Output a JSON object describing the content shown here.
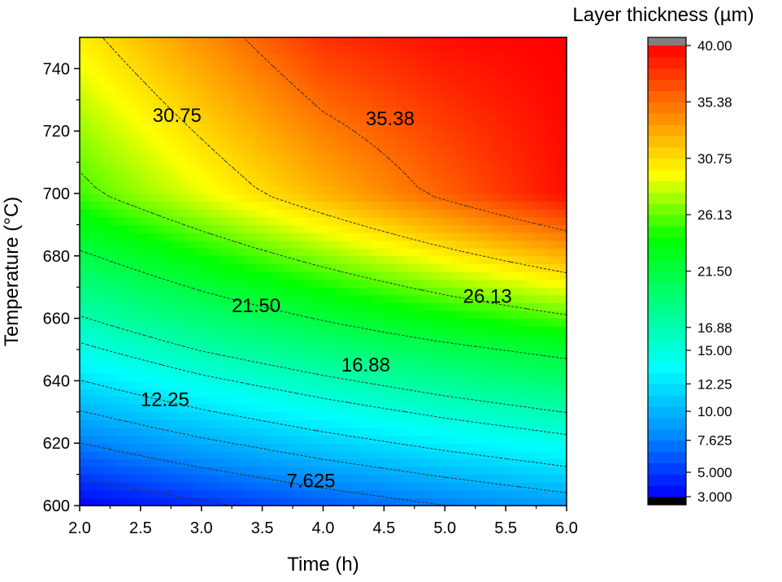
{
  "chart_data": {
    "type": "heatmap",
    "subtype": "filled-contour",
    "xlabel": "Time (h)",
    "ylabel": "Temperature (°C)",
    "xlim": [
      2.0,
      6.0
    ],
    "ylim": [
      600,
      750
    ],
    "x_ticks": [
      "2.0",
      "2.5",
      "3.0",
      "3.5",
      "4.0",
      "4.5",
      "5.0",
      "5.5",
      "6.0"
    ],
    "y_ticks": [
      "600",
      "620",
      "640",
      "660",
      "680",
      "700",
      "720",
      "740"
    ],
    "grid": false,
    "z_field": {
      "x": [
        2.0,
        3.0,
        4.0,
        5.0,
        6.0
      ],
      "y": [
        600,
        650,
        700,
        750
      ],
      "z": [
        [
          3.0,
          4.6,
          6.2,
          7.6,
          8.9
        ],
        [
          14.5,
          17.0,
          19.0,
          20.8,
          22.3
        ],
        [
          25.5,
          29.0,
          32.5,
          36.0,
          39.5
        ],
        [
          30.0,
          34.0,
          38.0,
          39.5,
          40.0
        ]
      ]
    },
    "contour_levels": [
      3.0,
      5.0,
      7.625,
      10.0,
      12.25,
      15.0,
      16.88,
      21.5,
      26.13,
      30.75,
      35.38,
      40.0
    ],
    "contour_labels": [
      {
        "text": "30.75",
        "x": 2.8,
        "y": 725
      },
      {
        "text": "35.38",
        "x": 4.55,
        "y": 724
      },
      {
        "text": "26.13",
        "x": 5.35,
        "y": 667
      },
      {
        "text": "21.50",
        "x": 3.45,
        "y": 664
      },
      {
        "text": "16.88",
        "x": 4.35,
        "y": 645
      },
      {
        "text": "12.25",
        "x": 2.7,
        "y": 634
      },
      {
        "text": "7.625",
        "x": 3.9,
        "y": 608
      }
    ],
    "colorbar": {
      "title": "Layer thickness (µm)",
      "min": 3.0,
      "max": 40.0,
      "tick_labels": [
        "40.00",
        "35.38",
        "30.75",
        "26.13",
        "21.50",
        "16.88",
        "15.00",
        "12.25",
        "10.00",
        "7.625",
        "5.000",
        "3.000"
      ],
      "tick_values": [
        40.0,
        35.38,
        30.75,
        26.13,
        21.5,
        16.88,
        15.0,
        12.25,
        10.0,
        7.625,
        5.0,
        3.0
      ],
      "over_color": "#808080",
      "under_color": "#000000",
      "colors": [
        "#0000ff",
        "#0090ff",
        "#00ffff",
        "#00ff80",
        "#00ff00",
        "#ffff00",
        "#ff8000",
        "#ff0000"
      ]
    }
  }
}
